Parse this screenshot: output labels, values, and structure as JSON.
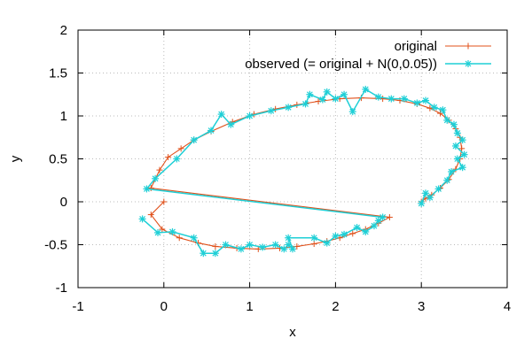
{
  "chart_data": {
    "type": "line",
    "xlabel": "x",
    "ylabel": "y",
    "xlim": [
      -1,
      4
    ],
    "ylim": [
      -1,
      2
    ],
    "xticks": [
      "-1",
      "0",
      "1",
      "2",
      "3",
      "4"
    ],
    "yticks": [
      "-1",
      "-0.5",
      "0",
      "0.5",
      "1",
      "1.5",
      "2"
    ],
    "grid": true,
    "legend_position": "top-right",
    "series": [
      {
        "name": "original",
        "color": "#e0501a",
        "marker": "plus",
        "points": [
          [
            0.0,
            0.0
          ],
          [
            -0.15,
            -0.15
          ],
          [
            -0.02,
            -0.32
          ],
          [
            0.18,
            -0.42
          ],
          [
            0.4,
            -0.48
          ],
          [
            0.6,
            -0.52
          ],
          [
            0.85,
            -0.54
          ],
          [
            1.1,
            -0.55
          ],
          [
            1.35,
            -0.54
          ],
          [
            1.55,
            -0.52
          ],
          [
            1.75,
            -0.49
          ],
          [
            1.9,
            -0.46
          ],
          [
            2.05,
            -0.42
          ],
          [
            2.2,
            -0.37
          ],
          [
            2.35,
            -0.32
          ],
          [
            2.5,
            -0.25
          ],
          [
            2.63,
            -0.18
          ],
          [
            -0.15,
            0.16
          ],
          [
            -0.05,
            0.37
          ],
          [
            0.05,
            0.52
          ],
          [
            0.2,
            0.62
          ],
          [
            0.35,
            0.72
          ],
          [
            0.55,
            0.82
          ],
          [
            0.8,
            0.93
          ],
          [
            1.05,
            1.02
          ],
          [
            1.3,
            1.08
          ],
          [
            1.55,
            1.13
          ],
          [
            1.8,
            1.17
          ],
          [
            2.05,
            1.2
          ],
          [
            2.3,
            1.21
          ],
          [
            2.55,
            1.2
          ],
          [
            2.75,
            1.18
          ],
          [
            2.95,
            1.14
          ],
          [
            3.1,
            1.09
          ],
          [
            3.22,
            1.03
          ],
          [
            3.32,
            0.95
          ],
          [
            3.4,
            0.85
          ],
          [
            3.45,
            0.75
          ],
          [
            3.47,
            0.62
          ],
          [
            3.45,
            0.5
          ],
          [
            3.4,
            0.38
          ],
          [
            3.32,
            0.26
          ],
          [
            3.22,
            0.16
          ],
          [
            3.12,
            0.08
          ],
          [
            3.05,
            0.04
          ],
          [
            3.0,
            0.0
          ]
        ]
      },
      {
        "name": "observed (= original + N(0,0.05))",
        "color": "#1ecfd6",
        "marker": "star",
        "points": [
          [
            -0.25,
            -0.2
          ],
          [
            -0.07,
            -0.36
          ],
          [
            0.1,
            -0.35
          ],
          [
            0.35,
            -0.42
          ],
          [
            0.46,
            -0.6
          ],
          [
            0.6,
            -0.6
          ],
          [
            0.72,
            -0.5
          ],
          [
            0.9,
            -0.55
          ],
          [
            1.0,
            -0.5
          ],
          [
            1.15,
            -0.53
          ],
          [
            1.3,
            -0.5
          ],
          [
            1.4,
            -0.55
          ],
          [
            1.45,
            -0.5
          ],
          [
            1.5,
            -0.55
          ],
          [
            1.45,
            -0.42
          ],
          [
            1.75,
            -0.42
          ],
          [
            1.9,
            -0.48
          ],
          [
            2.0,
            -0.4
          ],
          [
            2.1,
            -0.38
          ],
          [
            2.25,
            -0.3
          ],
          [
            2.35,
            -0.35
          ],
          [
            2.45,
            -0.28
          ],
          [
            2.5,
            -0.22
          ],
          [
            2.55,
            -0.18
          ],
          [
            -0.2,
            0.15
          ],
          [
            -0.1,
            0.27
          ],
          [
            0.15,
            0.5
          ],
          [
            0.35,
            0.72
          ],
          [
            0.55,
            0.83
          ],
          [
            0.67,
            1.02
          ],
          [
            0.78,
            0.9
          ],
          [
            1.0,
            1.0
          ],
          [
            1.25,
            1.06
          ],
          [
            1.45,
            1.1
          ],
          [
            1.65,
            1.14
          ],
          [
            1.7,
            1.25
          ],
          [
            1.85,
            1.19
          ],
          [
            1.9,
            1.28
          ],
          [
            2.0,
            1.2
          ],
          [
            2.1,
            1.25
          ],
          [
            2.2,
            1.05
          ],
          [
            2.35,
            1.31
          ],
          [
            2.5,
            1.22
          ],
          [
            2.65,
            1.2
          ],
          [
            2.8,
            1.2
          ],
          [
            2.95,
            1.15
          ],
          [
            3.05,
            1.18
          ],
          [
            3.15,
            1.1
          ],
          [
            3.25,
            1.07
          ],
          [
            3.3,
            0.95
          ],
          [
            3.38,
            0.9
          ],
          [
            3.42,
            0.8
          ],
          [
            3.48,
            0.72
          ],
          [
            3.4,
            0.65
          ],
          [
            3.5,
            0.55
          ],
          [
            3.42,
            0.5
          ],
          [
            3.48,
            0.4
          ],
          [
            3.35,
            0.35
          ],
          [
            3.3,
            0.25
          ],
          [
            3.2,
            0.15
          ],
          [
            3.1,
            0.05
          ],
          [
            3.05,
            0.1
          ],
          [
            3.0,
            -0.02
          ]
        ]
      }
    ]
  }
}
